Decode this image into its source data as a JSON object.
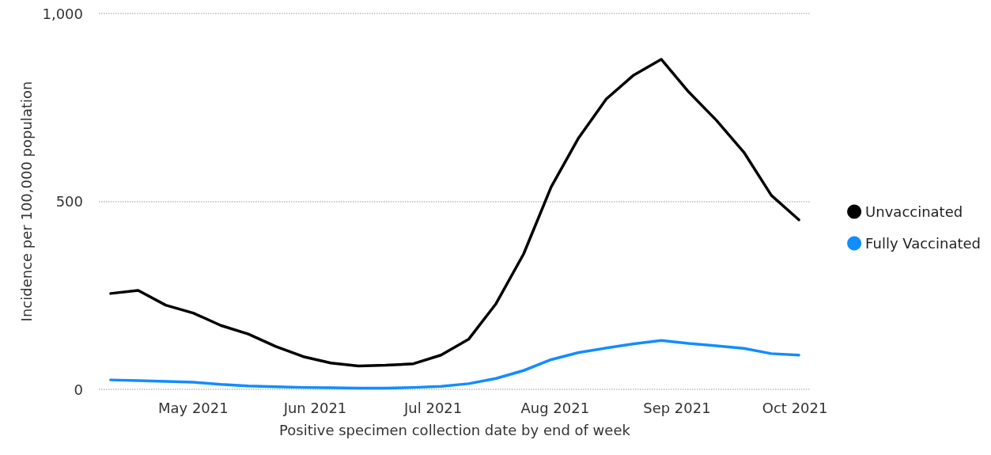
{
  "chart_data": {
    "type": "line",
    "xlabel": "Positive specimen collection date by end of week",
    "ylabel": "Incidence per 100,000 population",
    "x": [
      "2021-04-10",
      "2021-04-17",
      "2021-04-24",
      "2021-05-01",
      "2021-05-08",
      "2021-05-15",
      "2021-05-22",
      "2021-05-29",
      "2021-06-05",
      "2021-06-12",
      "2021-06-19",
      "2021-06-26",
      "2021-07-03",
      "2021-07-10",
      "2021-07-17",
      "2021-07-24",
      "2021-07-31",
      "2021-08-07",
      "2021-08-14",
      "2021-08-21",
      "2021-08-28",
      "2021-09-04",
      "2021-09-11",
      "2021-09-18",
      "2021-09-25",
      "2021-10-02"
    ],
    "series": [
      {
        "name": "Unvaccinated",
        "color": "#000000",
        "values": [
          255,
          263,
          224,
          203,
          170,
          147,
          114,
          87,
          70,
          62,
          64,
          68,
          91,
          133,
          228,
          360,
          538,
          669,
          772,
          836,
          878,
          791,
          716,
          631,
          516,
          451
        ]
      },
      {
        "name": "Fully Vaccinated",
        "color": "#118dff",
        "values": [
          25,
          23,
          21,
          19,
          13,
          9,
          7,
          5,
          4,
          3,
          3,
          5,
          8,
          15,
          29,
          50,
          79,
          98,
          110,
          121,
          130,
          122,
          116,
          109,
          95,
          91
        ]
      }
    ],
    "xlim": [
      "2021-04-07",
      "2021-10-05"
    ],
    "xticks": [
      {
        "value": "2021-05-01",
        "label": "May 2021"
      },
      {
        "value": "2021-06-01",
        "label": "Jun 2021"
      },
      {
        "value": "2021-07-01",
        "label": "Jul 2021"
      },
      {
        "value": "2021-08-01",
        "label": "Aug 2021"
      },
      {
        "value": "2021-09-01",
        "label": "Sep 2021"
      },
      {
        "value": "2021-10-01",
        "label": "Oct 2021"
      }
    ],
    "ylim": [
      0,
      1000
    ],
    "yticks": [
      0,
      500,
      {
        "value": 1000,
        "label": "1,000"
      }
    ],
    "grid": "y",
    "legend": "right",
    "marker": "none",
    "line_style": "solid"
  }
}
